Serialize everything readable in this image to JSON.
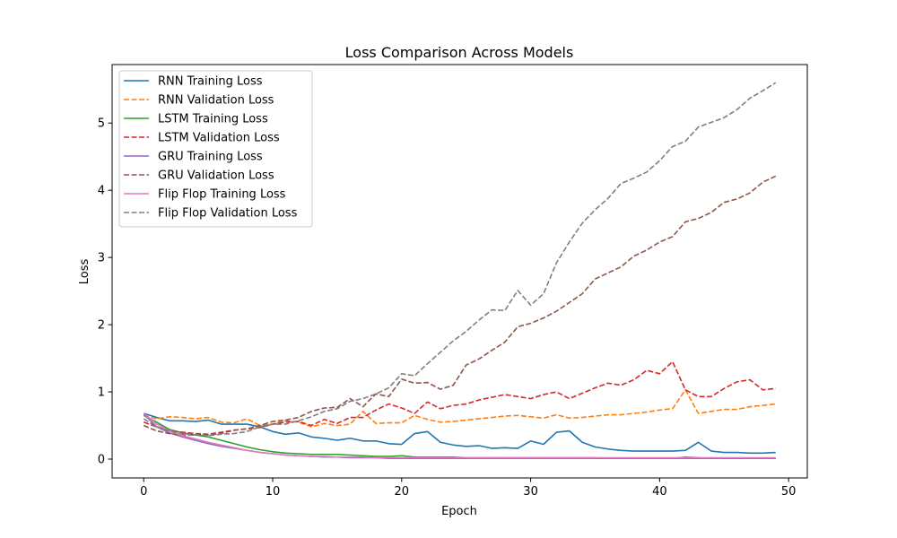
{
  "chart_data": {
    "type": "line",
    "title": "Loss Comparison Across Models",
    "xlabel": "Epoch",
    "ylabel": "Loss",
    "xlim": [
      -2.45,
      51.45
    ],
    "ylim": [
      -0.28,
      5.87
    ],
    "xticks": [
      0,
      10,
      20,
      30,
      40,
      50
    ],
    "yticks": [
      0,
      1,
      2,
      3,
      4,
      5
    ],
    "grid": false,
    "legend_position": "top-left",
    "x": [
      0,
      1,
      2,
      3,
      4,
      5,
      6,
      7,
      8,
      9,
      10,
      11,
      12,
      13,
      14,
      15,
      16,
      17,
      18,
      19,
      20,
      21,
      22,
      23,
      24,
      25,
      26,
      27,
      28,
      29,
      30,
      31,
      32,
      33,
      34,
      35,
      36,
      37,
      38,
      39,
      40,
      41,
      42,
      43,
      44,
      45,
      46,
      47,
      48,
      49
    ],
    "series": [
      {
        "name": "RNN Training Loss",
        "color": "#1f77b4",
        "dash": "solid",
        "values": [
          0.68,
          0.62,
          0.57,
          0.57,
          0.56,
          0.58,
          0.52,
          0.52,
          0.52,
          0.48,
          0.41,
          0.37,
          0.39,
          0.33,
          0.31,
          0.28,
          0.31,
          0.27,
          0.27,
          0.23,
          0.22,
          0.38,
          0.41,
          0.25,
          0.21,
          0.19,
          0.2,
          0.16,
          0.17,
          0.16,
          0.27,
          0.22,
          0.4,
          0.42,
          0.25,
          0.18,
          0.15,
          0.13,
          0.12,
          0.12,
          0.12,
          0.12,
          0.13,
          0.25,
          0.12,
          0.1,
          0.1,
          0.09,
          0.09,
          0.1
        ]
      },
      {
        "name": "RNN Validation Loss",
        "color": "#ff7f0e",
        "dash": "dashed",
        "values": [
          0.65,
          0.6,
          0.63,
          0.62,
          0.6,
          0.62,
          0.55,
          0.54,
          0.6,
          0.5,
          0.52,
          0.57,
          0.55,
          0.48,
          0.53,
          0.5,
          0.52,
          0.71,
          0.53,
          0.54,
          0.54,
          0.65,
          0.59,
          0.55,
          0.56,
          0.58,
          0.6,
          0.62,
          0.64,
          0.65,
          0.63,
          0.61,
          0.66,
          0.61,
          0.62,
          0.64,
          0.66,
          0.66,
          0.68,
          0.7,
          0.73,
          0.75,
          1.03,
          0.68,
          0.71,
          0.74,
          0.74,
          0.78,
          0.8,
          0.82
        ]
      },
      {
        "name": "LSTM Training Loss",
        "color": "#2ca02c",
        "dash": "solid",
        "values": [
          0.65,
          0.55,
          0.44,
          0.39,
          0.36,
          0.33,
          0.28,
          0.23,
          0.18,
          0.14,
          0.11,
          0.09,
          0.08,
          0.07,
          0.07,
          0.07,
          0.06,
          0.05,
          0.04,
          0.04,
          0.05,
          0.03,
          0.03,
          0.03,
          0.03,
          0.02,
          0.02,
          0.02,
          0.02,
          0.02,
          0.02,
          0.02,
          0.02,
          0.02,
          0.02,
          0.02,
          0.01,
          0.01,
          0.01,
          0.01,
          0.01,
          0.01,
          0.03,
          0.02,
          0.01,
          0.01,
          0.01,
          0.01,
          0.01,
          0.01
        ]
      },
      {
        "name": "LSTM Validation Loss",
        "color": "#d62728",
        "dash": "dashed",
        "values": [
          0.55,
          0.48,
          0.42,
          0.4,
          0.38,
          0.37,
          0.4,
          0.43,
          0.45,
          0.47,
          0.52,
          0.55,
          0.56,
          0.5,
          0.59,
          0.53,
          0.62,
          0.62,
          0.73,
          0.82,
          0.76,
          0.68,
          0.85,
          0.75,
          0.8,
          0.82,
          0.88,
          0.92,
          0.96,
          0.93,
          0.9,
          0.96,
          1.0,
          0.9,
          0.98,
          1.06,
          1.13,
          1.1,
          1.18,
          1.32,
          1.27,
          1.45,
          1.03,
          0.93,
          0.93,
          1.05,
          1.15,
          1.18,
          1.03,
          1.05
        ]
      },
      {
        "name": "GRU Training Loss",
        "color": "#9467bd",
        "dash": "solid",
        "values": [
          0.67,
          0.48,
          0.39,
          0.33,
          0.28,
          0.23,
          0.19,
          0.16,
          0.13,
          0.1,
          0.08,
          0.06,
          0.05,
          0.04,
          0.03,
          0.03,
          0.02,
          0.02,
          0.02,
          0.01,
          0.01,
          0.01,
          0.01,
          0.01,
          0.01,
          0.01,
          0.01,
          0.01,
          0.01,
          0.01,
          0.01,
          0.01,
          0.01,
          0.01,
          0.01,
          0.01,
          0.01,
          0.01,
          0.01,
          0.01,
          0.01,
          0.01,
          0.01,
          0.01,
          0.01,
          0.01,
          0.01,
          0.01,
          0.01,
          0.01
        ]
      },
      {
        "name": "GRU Validation Loss",
        "color": "#8c564b",
        "dash": "dashed",
        "values": [
          0.5,
          0.42,
          0.38,
          0.36,
          0.36,
          0.36,
          0.38,
          0.43,
          0.45,
          0.5,
          0.56,
          0.58,
          0.62,
          0.71,
          0.76,
          0.77,
          0.9,
          0.78,
          0.97,
          0.93,
          1.19,
          1.13,
          1.14,
          1.04,
          1.1,
          1.4,
          1.49,
          1.62,
          1.74,
          1.97,
          2.02,
          2.1,
          2.2,
          2.33,
          2.46,
          2.68,
          2.77,
          2.86,
          3.02,
          3.11,
          3.23,
          3.31,
          3.53,
          3.58,
          3.67,
          3.82,
          3.87,
          3.96,
          4.12,
          4.21
        ]
      },
      {
        "name": "Flip Flop Training Loss",
        "color": "#e377c2",
        "dash": "solid",
        "values": [
          0.68,
          0.52,
          0.42,
          0.35,
          0.3,
          0.25,
          0.21,
          0.17,
          0.13,
          0.1,
          0.08,
          0.06,
          0.05,
          0.04,
          0.04,
          0.03,
          0.03,
          0.03,
          0.02,
          0.02,
          0.02,
          0.02,
          0.02,
          0.02,
          0.02,
          0.02,
          0.02,
          0.02,
          0.02,
          0.02,
          0.02,
          0.02,
          0.02,
          0.02,
          0.02,
          0.02,
          0.02,
          0.02,
          0.02,
          0.02,
          0.02,
          0.02,
          0.02,
          0.02,
          0.02,
          0.02,
          0.02,
          0.02,
          0.02,
          0.02
        ]
      },
      {
        "name": "Flip Flop Validation Loss",
        "color": "#7f7f7f",
        "dash": "dashed",
        "values": [
          0.6,
          0.48,
          0.42,
          0.38,
          0.36,
          0.35,
          0.37,
          0.38,
          0.41,
          0.48,
          0.52,
          0.52,
          0.57,
          0.63,
          0.71,
          0.75,
          0.86,
          0.9,
          0.97,
          1.06,
          1.27,
          1.24,
          1.42,
          1.59,
          1.76,
          1.9,
          2.07,
          2.22,
          2.21,
          2.51,
          2.29,
          2.46,
          2.92,
          3.23,
          3.51,
          3.71,
          3.88,
          4.1,
          4.18,
          4.27,
          4.44,
          4.65,
          4.73,
          4.94,
          5.01,
          5.08,
          5.2,
          5.37,
          5.48,
          5.6
        ]
      }
    ]
  }
}
